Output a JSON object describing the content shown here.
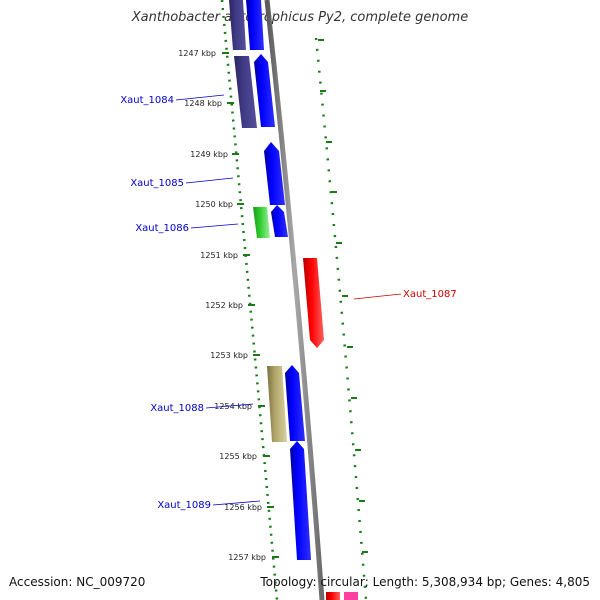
{
  "title": "Xanthobacter autotrophicus Py2, complete genome",
  "footer": {
    "accession": "Accession: NC_009720",
    "topology": "Topology: circular; Length: 5,308,934 bp; Genes: 4,805"
  },
  "colors": {
    "background": "#ffffff",
    "backbone": "#8c8c8c",
    "ticks": "#1a7a1a",
    "cds_forward": "#0000ff",
    "cds_dark": "#3f3a85",
    "cds_green": "#2ccc2c",
    "cds_olive": "#b0a66a",
    "cds_reverse": "#ff0000",
    "label_forward": "#0000cc",
    "label_reverse": "#cc0000",
    "pink": "#ff3fa0"
  },
  "scale_ticks": [
    {
      "label": "1247 kbp"
    },
    {
      "label": "1248 kbp"
    },
    {
      "label": "1249 kbp"
    },
    {
      "label": "1250 kbp"
    },
    {
      "label": "1251 kbp"
    },
    {
      "label": "1252 kbp"
    },
    {
      "label": "1253 kbp"
    },
    {
      "label": "1254 kbp"
    },
    {
      "label": "1255 kbp"
    },
    {
      "label": "1256 kbp"
    },
    {
      "label": "1257 kbp"
    }
  ],
  "gene_labels": [
    {
      "name": "Xaut_1084",
      "strand": "forward"
    },
    {
      "name": "Xaut_1085",
      "strand": "forward"
    },
    {
      "name": "Xaut_1086",
      "strand": "forward"
    },
    {
      "name": "Xaut_1087",
      "strand": "reverse"
    },
    {
      "name": "Xaut_1088",
      "strand": "forward"
    },
    {
      "name": "Xaut_1089",
      "strand": "forward"
    }
  ]
}
